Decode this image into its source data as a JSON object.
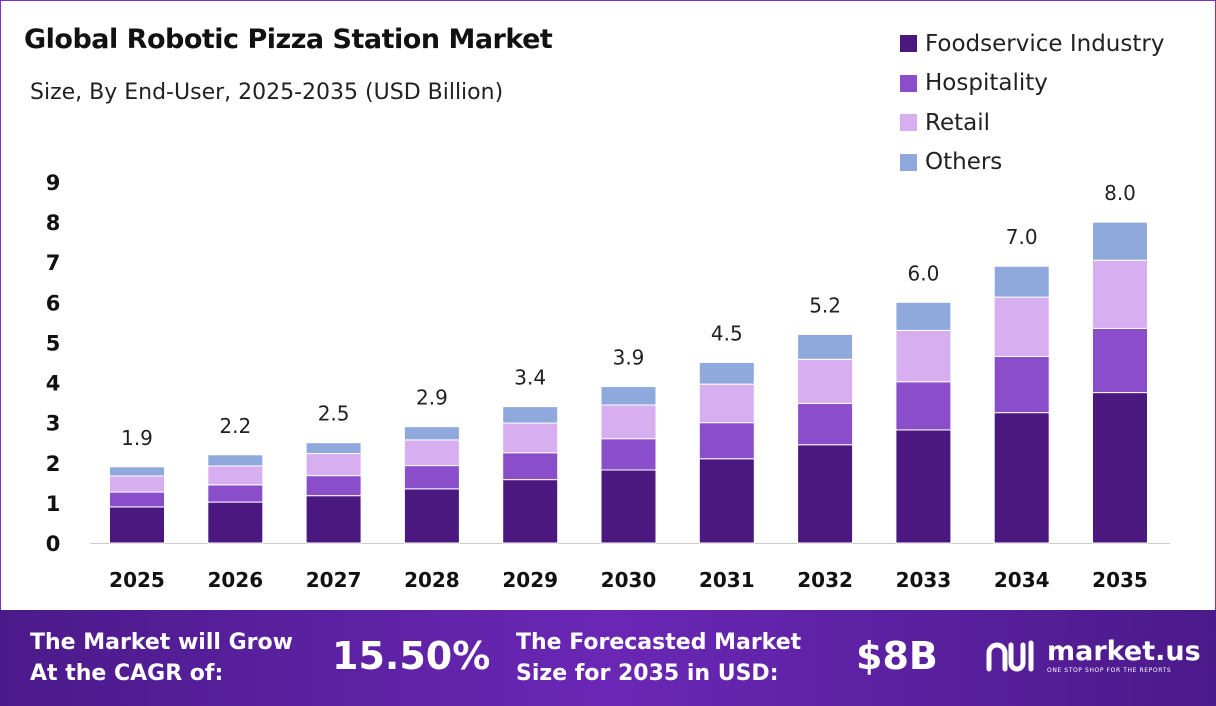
{
  "title": "Global Robotic Pizza Station Market",
  "subtitle": "Size, By End-User, 2025-2035 (USD Billion)",
  "colors": {
    "foodservice": "#4b1880",
    "hospitality": "#8a4ecb",
    "retail": "#d7aef0",
    "others": "#8fa9dc",
    "banner": "#5a1fa0"
  },
  "chart_data": {
    "type": "bar",
    "stacked": true,
    "categories": [
      "2025",
      "2026",
      "2027",
      "2028",
      "2029",
      "2030",
      "2031",
      "2032",
      "2033",
      "2034",
      "2035"
    ],
    "series": [
      {
        "name": "Foodservice Industry",
        "values": [
          0.9,
          1.02,
          1.18,
          1.35,
          1.58,
          1.82,
          2.1,
          2.45,
          2.82,
          3.25,
          3.75
        ]
      },
      {
        "name": "Hospitality",
        "values": [
          0.37,
          0.43,
          0.5,
          0.58,
          0.67,
          0.78,
          0.9,
          1.03,
          1.2,
          1.4,
          1.6
        ]
      },
      {
        "name": "Retail",
        "values": [
          0.4,
          0.47,
          0.55,
          0.64,
          0.74,
          0.84,
          0.96,
          1.1,
          1.28,
          1.48,
          1.7
        ]
      },
      {
        "name": "Others",
        "values": [
          0.23,
          0.28,
          0.27,
          0.33,
          0.41,
          0.46,
          0.54,
          0.62,
          0.7,
          0.77,
          0.95
        ]
      }
    ],
    "totals": [
      "1.9",
      "2.2",
      "2.5",
      "2.9",
      "3.4",
      "3.9",
      "4.5",
      "5.2",
      "6.0",
      "7.0",
      "8.0"
    ],
    "ylim": [
      0,
      9
    ],
    "yticks": [
      "0",
      "1",
      "2",
      "3",
      "4",
      "5",
      "6",
      "7",
      "8",
      "9"
    ],
    "xlabel": "",
    "ylabel": "",
    "legend_position": "top-right",
    "grid": false
  },
  "banner": {
    "cagr_text_line1": "The Market will Grow",
    "cagr_text_line2": "At the CAGR of:",
    "cagr_value": "15.50%",
    "forecast_text_line1": "The Forecasted Market",
    "forecast_text_line2": "Size for 2035 in USD:",
    "forecast_value": "$8B",
    "brand_name": "market.us",
    "brand_tagline": "ONE STOP SHOP FOR THE REPORTS"
  }
}
